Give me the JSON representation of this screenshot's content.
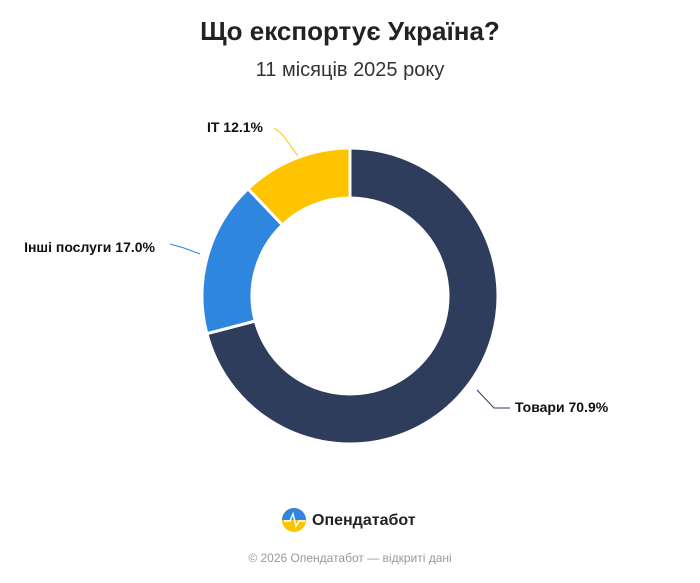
{
  "chart_data": {
    "type": "donut",
    "title": "Що експортує Україна?",
    "subtitle": "11 місяців 2025 року",
    "categories": [
      "Товари",
      "Інші послуги",
      "IT"
    ],
    "values": [
      70.9,
      17.0,
      12.1
    ],
    "value_labels": [
      "70.9%",
      "17.0%",
      "12.1%"
    ],
    "colors": [
      "#2e3d5c",
      "#2f86de",
      "#ffc400"
    ]
  },
  "brand": "Опендатабот",
  "footer": "© 2026 Опендатабот — відкриті дані"
}
